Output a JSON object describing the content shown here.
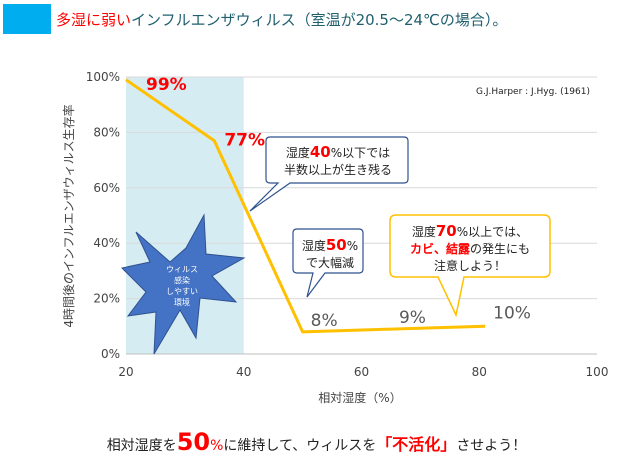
{
  "title": {
    "highlight": "多湿に弱い",
    "rest": "インフルエンザウィルス（室温が20.5～24℃の場合）。"
  },
  "source": "G.J.Harper : J.Hyg. (1961)",
  "chart_data": {
    "type": "line",
    "xlabel": "相対湿度（%）",
    "ylabel": "4時間後のインフルエンザウィルス生存率",
    "xlim": [
      20,
      100
    ],
    "ylim": [
      0,
      100
    ],
    "xticks": [
      "20",
      "40",
      "60",
      "80",
      "100"
    ],
    "yticks": [
      "0%",
      "20%",
      "40%",
      "60%",
      "80%",
      "100%"
    ],
    "grid": true,
    "series": [
      {
        "name": "生存率",
        "color": "#ffc000",
        "x": [
          20,
          35,
          50,
          65,
          81
        ],
        "y": [
          99,
          77,
          8,
          9,
          10
        ],
        "labels": [
          "99%",
          "77%",
          "8%",
          "9%",
          "10%"
        ]
      }
    ],
    "shaded_region": {
      "x": [
        20,
        40
      ],
      "color": "#d6ecf3"
    },
    "annotations": {
      "star": [
        "ウィルス",
        "感染",
        "しやすい",
        "環境"
      ],
      "callout1": {
        "a": "湿度",
        "b": "40",
        "c": "%以下では",
        "d": "半数以上が生き残る"
      },
      "callout2": {
        "a": "湿度",
        "b": "50",
        "c": "%",
        "d": "で大幅減"
      },
      "callout3": {
        "a": "湿度",
        "b": "70",
        "c": "%以上では、",
        "d": "カビ、結露",
        "e": "の発生にも",
        "f": "注意しよう！"
      }
    }
  },
  "footer": {
    "a": "相対湿度を",
    "b": "50",
    "c": "%",
    "d": "に維持して、ウィルスを",
    "e": "「不活化」",
    "f": "させよう！"
  }
}
